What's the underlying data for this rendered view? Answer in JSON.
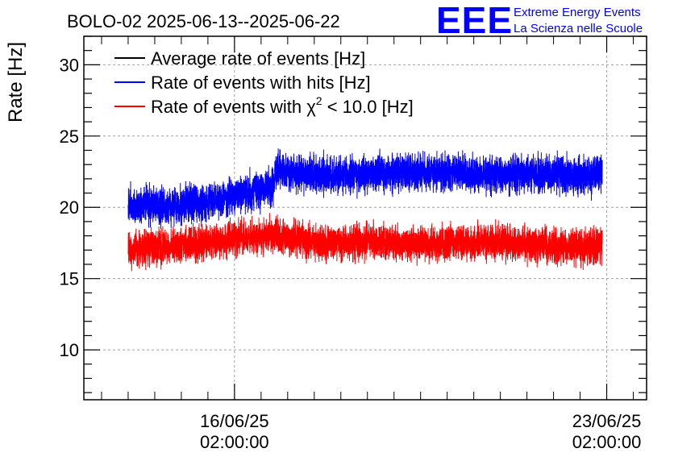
{
  "chart_data": {
    "type": "line",
    "title": "BOLO-02 2025-06-13--2025-06-22",
    "ylabel": "Rate [Hz]",
    "xlabel": "",
    "ylim": [
      6.5,
      32
    ],
    "y_ticks": [
      10,
      15,
      20,
      25,
      30
    ],
    "xlim": [
      "2025-06-13 06:00:00",
      "2025-06-23 20:00:00"
    ],
    "x_ticks": [
      {
        "date": "2025-06-16 02:00:00",
        "line1": "16/06/25",
        "line2": "02:00:00"
      },
      {
        "date": "2025-06-23 02:00:00",
        "line1": "23/06/25",
        "line2": "02:00:00"
      }
    ],
    "grid": true,
    "legend_position": "top-left",
    "series": [
      {
        "name": "Average rate of events [Hz]",
        "color": "#000000",
        "points": []
      },
      {
        "name": "Rate of events with hits [Hz]",
        "color": "#0000ff",
        "noise": 0.9,
        "points": [
          [
            "2025-06-14 02:00:00",
            20.2
          ],
          [
            "2025-06-14 18:00:00",
            20.1
          ],
          [
            "2025-06-15 12:00:00",
            20.3
          ],
          [
            "2025-06-16 06:00:00",
            20.9
          ],
          [
            "2025-06-16 14:00:00",
            21.3
          ],
          [
            "2025-06-16 20:00:00",
            21.5
          ],
          [
            "2025-06-16 20:10:00",
            22.6
          ],
          [
            "2025-06-17 18:00:00",
            22.2
          ],
          [
            "2025-06-18 18:00:00",
            22.4
          ],
          [
            "2025-06-19 18:00:00",
            22.5
          ],
          [
            "2025-06-20 18:00:00",
            22.3
          ],
          [
            "2025-06-21 18:00:00",
            22.4
          ],
          [
            "2025-06-22 18:00:00",
            22.2
          ],
          [
            "2025-06-23 00:00:00",
            22.4
          ]
        ]
      },
      {
        "name": "Rate of events with χ2 < 10.0 [Hz]",
        "legend_parts": [
          "Rate of events with ",
          "χ",
          "2",
          " < 10.0 [Hz]"
        ],
        "color": "#ff0000",
        "noise": 0.85,
        "points": [
          [
            "2025-06-14 02:00:00",
            17.0
          ],
          [
            "2025-06-14 18:00:00",
            17.2
          ],
          [
            "2025-06-15 12:00:00",
            17.5
          ],
          [
            "2025-06-16 06:00:00",
            17.9
          ],
          [
            "2025-06-16 20:00:00",
            18.0
          ],
          [
            "2025-06-17 18:00:00",
            17.5
          ],
          [
            "2025-06-18 18:00:00",
            17.6
          ],
          [
            "2025-06-19 18:00:00",
            17.4
          ],
          [
            "2025-06-20 18:00:00",
            17.6
          ],
          [
            "2025-06-21 18:00:00",
            17.3
          ],
          [
            "2025-06-22 18:00:00",
            17.2
          ],
          [
            "2025-06-23 00:00:00",
            17.4
          ]
        ]
      }
    ]
  },
  "logo": {
    "mark": "EEE",
    "line1": "Extreme Energy Events",
    "line2": "La Scienza nelle Scuole",
    "color": "#0000ff"
  }
}
